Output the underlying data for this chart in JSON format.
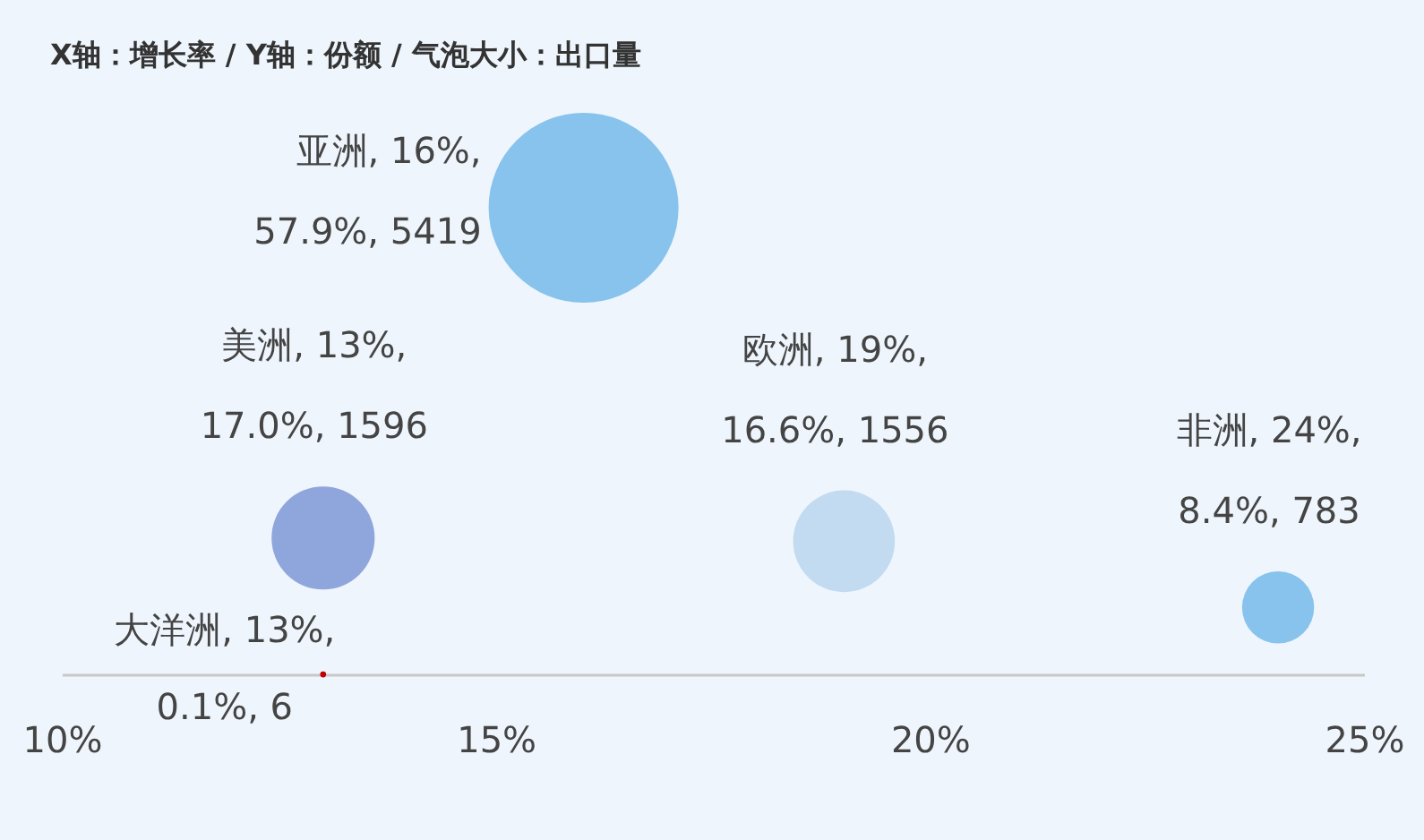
{
  "chart_data": {
    "type": "bubble",
    "title": "X轴：增长率 / Y轴：份额 / 气泡大小：出口量",
    "x": [
      16,
      13,
      19,
      24,
      13
    ],
    "values": [
      57.9,
      17.0,
      16.6,
      8.4,
      0.1
    ],
    "sizes": [
      1,
      0.295,
      0.287,
      0.144,
      0.001
    ],
    "value_labels": [
      "亚洲, 16%,\n57.9%, 5419",
      "美洲, 13%,\n17.0%, 1596",
      "欧洲, 19%,\n16.6%, 1556",
      "非洲, 24%,\n8.4%, 783",
      "大洋洲, 13%,\n0.1%, 6"
    ],
    "colors": [
      "#87c3ec",
      "#8fa6dc",
      "#c2dbf0",
      "#87c3ec",
      "#c00000"
    ],
    "xlim": [
      10,
      25
    ],
    "xticks": [
      {
        "value": 10,
        "label": "10%"
      },
      {
        "value": 15,
        "label": "15%"
      },
      {
        "value": 20,
        "label": "20%"
      },
      {
        "value": 25,
        "label": "25%"
      }
    ],
    "tick_labels": "x"
  }
}
